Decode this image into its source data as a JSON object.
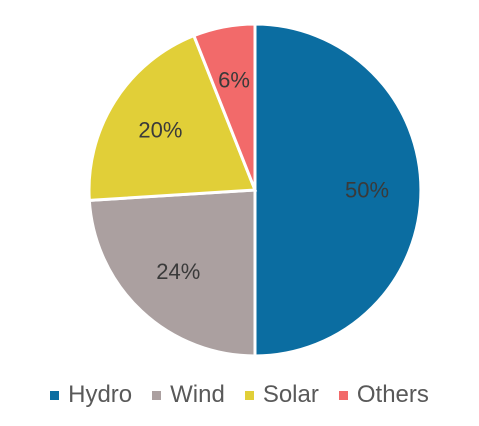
{
  "chart_data": {
    "type": "pie",
    "categories": [
      "Hydro",
      "Wind",
      "Solar",
      "Others"
    ],
    "values": [
      50,
      24,
      20,
      6
    ],
    "data_labels": [
      "50%",
      "24%",
      "20%",
      "6%"
    ],
    "colors": [
      "#0b6da1",
      "#aba0a0",
      "#e1cf38",
      "#f26a6a"
    ],
    "title": "",
    "start_angle_deg": 0,
    "direction": "clockwise",
    "legend_position": "bottom"
  }
}
